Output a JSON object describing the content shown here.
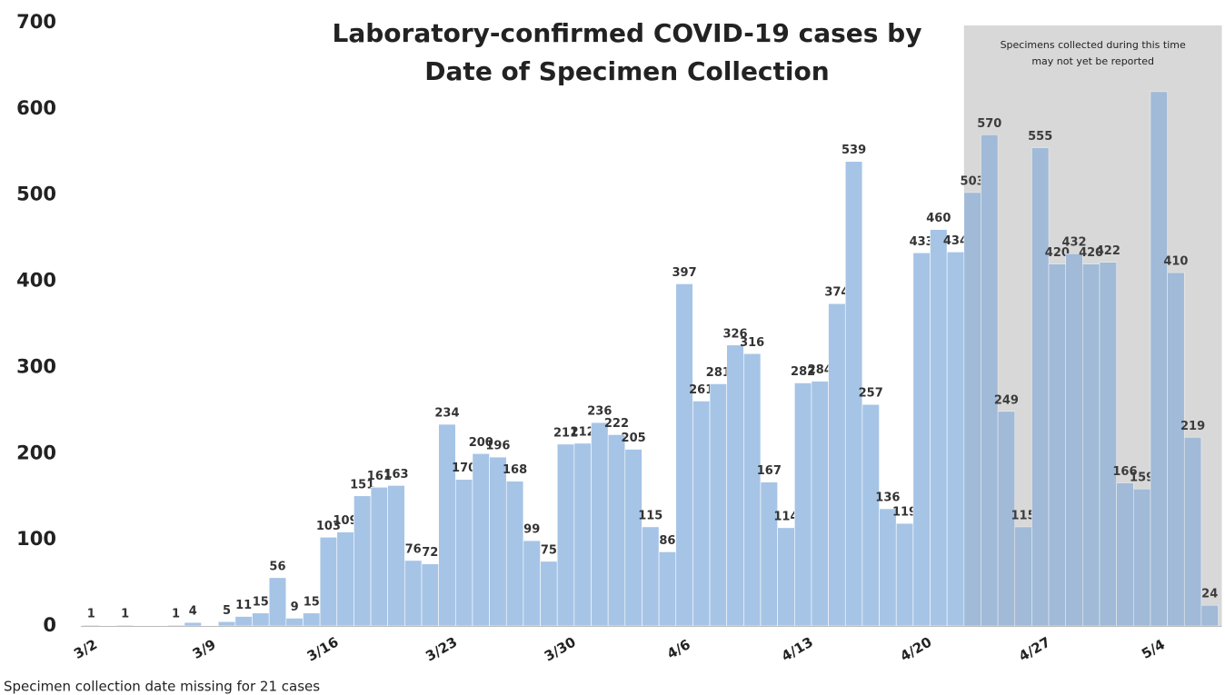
{
  "chart_data": {
    "type": "bar",
    "title": [
      "Laboratory-confirmed COVID-19 cases by",
      "Date of Specimen Collection"
    ],
    "annotation": [
      "Specimens collected during this time",
      "may not yet be reported"
    ],
    "footnote": "Specimen collection date missing for 21 cases",
    "color": "#a6c4e6",
    "categories": [
      "3/2",
      null,
      null,
      null,
      null,
      null,
      null,
      "3/9",
      null,
      null,
      null,
      null,
      null,
      null,
      "3/16",
      null,
      null,
      null,
      null,
      null,
      null,
      "3/23",
      null,
      null,
      null,
      null,
      null,
      null,
      "3/30",
      null,
      null,
      null,
      null,
      null,
      null,
      "4/6",
      null,
      null,
      null,
      null,
      null,
      null,
      "4/13",
      null,
      null,
      null,
      null,
      null,
      null,
      "4/20",
      null,
      null,
      null,
      null,
      null,
      null,
      "4/27",
      null,
      null,
      null,
      null,
      null,
      null,
      "5/4",
      null,
      null,
      null
    ],
    "values": [
      1,
      0,
      1,
      0,
      0,
      1,
      4,
      0,
      5,
      11,
      15,
      56,
      9,
      15,
      103,
      109,
      151,
      161,
      163,
      76,
      72,
      234,
      170,
      200,
      196,
      168,
      99,
      75,
      211,
      212,
      236,
      222,
      205,
      115,
      86,
      397,
      261,
      281,
      326,
      316,
      167,
      114,
      282,
      284,
      374,
      539,
      257,
      136,
      119,
      433,
      460,
      434,
      503,
      570,
      249,
      115,
      555,
      420,
      432,
      420,
      422,
      166,
      159,
      620,
      410,
      219,
      24
    ],
    "value_labels": [
      "1",
      null,
      "1",
      null,
      null,
      "1",
      "4",
      null,
      "5",
      "11",
      "15",
      "56",
      "9",
      "15",
      "103",
      "109",
      "151",
      "161",
      "163",
      "76",
      "72",
      "234",
      "170",
      "200",
      "196",
      "168",
      "99",
      "75",
      "211",
      "212",
      "236",
      "222",
      "205",
      "115",
      "86",
      "397",
      "261",
      "281",
      "326",
      "316",
      "167",
      "114",
      "282",
      "284",
      "374",
      "539",
      "257",
      "136",
      "119",
      "433",
      "460",
      "434",
      "503",
      "570",
      "249",
      "115",
      "555",
      "420",
      "432",
      "420",
      "422",
      "166",
      "159",
      null,
      "410",
      "219",
      "24"
    ],
    "ylim": [
      0,
      700
    ],
    "yticks": [
      0,
      100,
      200,
      300,
      400,
      500,
      600,
      700
    ]
  }
}
